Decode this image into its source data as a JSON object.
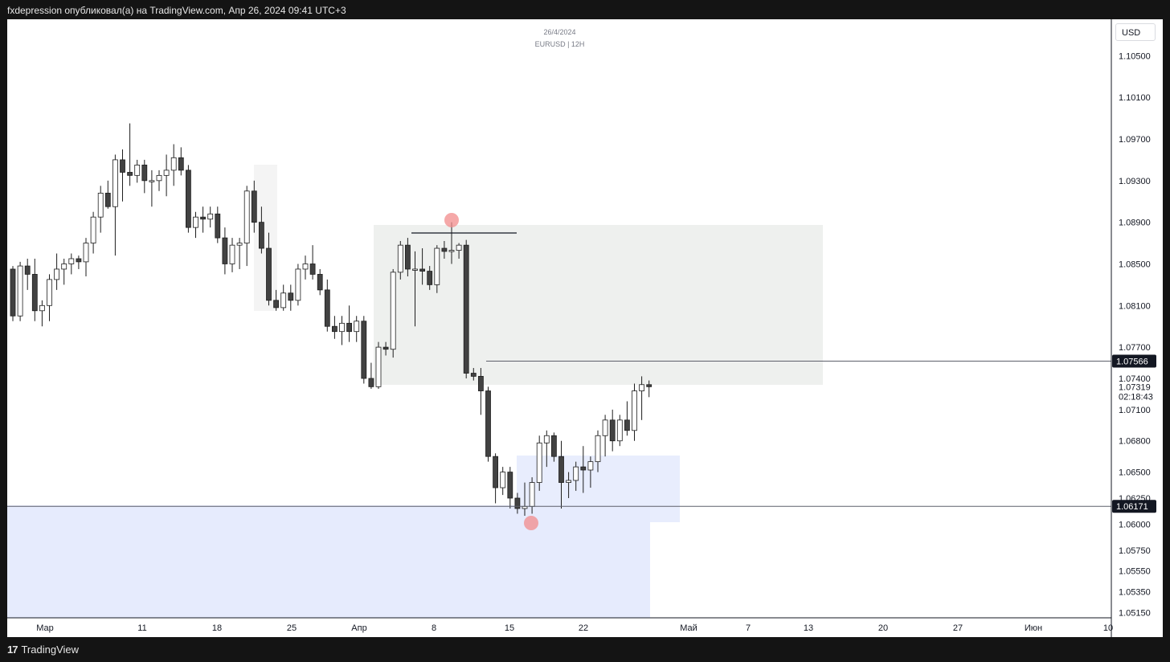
{
  "header": {
    "publication": "fxdepression опубликовал(а) на TradingView.com, Апр 26, 2024 09:41 UTC+3"
  },
  "chart_info": {
    "date": "26/4/2024",
    "symbol": "EURUSD | 12H",
    "currency": "USD"
  },
  "footer": {
    "brand": "TradingView",
    "logo_icon": "tradingview-logo-icon"
  },
  "colors": {
    "candle_up": "#ffffff",
    "candle_down": "#424242",
    "candle_border": "#1e1e1e",
    "supply_zone": "#eef0ee",
    "demand_zone": "#e6ebfd",
    "marker_red": "#f28b8b",
    "price_label_bg": "#131722"
  },
  "chart_data": {
    "type": "candlestick",
    "price_axis_ticks": [
      "1.10500",
      "1.10100",
      "1.09700",
      "1.09300",
      "1.08900",
      "1.08500",
      "1.08100",
      "1.07700",
      "1.07400",
      "1.07100",
      "1.06800",
      "1.06500",
      "1.06250",
      "1.06000",
      "1.05750",
      "1.05550",
      "1.05350",
      "1.05150"
    ],
    "time_axis_ticks": [
      "Мар",
      "11",
      "18",
      "25",
      "Апр",
      "8",
      "15",
      "22",
      "Май",
      "7",
      "13",
      "20",
      "27",
      "Июн",
      "10"
    ],
    "ylim": [
      1.051,
      1.1085
    ],
    "levels": [
      {
        "price": "1.07566",
        "style": "line"
      },
      {
        "price": "1.06171",
        "style": "line"
      }
    ],
    "current_price": {
      "price": "1.07319",
      "countdown": "02:18:43"
    },
    "candles": [
      [
        1.0845,
        1.0848,
        1.0795,
        1.08
      ],
      [
        1.08,
        1.0852,
        1.0795,
        1.0848
      ],
      [
        1.0848,
        1.0855,
        1.0825,
        1.084
      ],
      [
        1.084,
        1.0855,
        1.0795,
        1.0805
      ],
      [
        1.0805,
        1.0815,
        1.079,
        1.081
      ],
      [
        1.081,
        1.084,
        1.0795,
        1.0835
      ],
      [
        1.0835,
        1.086,
        1.0825,
        1.0845
      ],
      [
        1.0845,
        1.0855,
        1.083,
        1.085
      ],
      [
        1.085,
        1.086,
        1.084,
        1.0855
      ],
      [
        1.0855,
        1.0858,
        1.0845,
        1.0852
      ],
      [
        1.0852,
        1.0875,
        1.0838,
        1.087
      ],
      [
        1.087,
        1.09,
        1.086,
        1.0895
      ],
      [
        1.0895,
        1.0925,
        1.088,
        1.0918
      ],
      [
        1.0918,
        1.093,
        1.0903,
        1.0905
      ],
      [
        1.0905,
        1.0955,
        1.0858,
        1.095
      ],
      [
        1.095,
        1.096,
        1.091,
        1.0938
      ],
      [
        1.0938,
        1.0985,
        1.0925,
        1.0935
      ],
      [
        1.0935,
        1.095,
        1.0928,
        1.0945
      ],
      [
        1.0945,
        1.095,
        1.0918,
        1.093
      ],
      [
        1.093,
        1.094,
        1.0905,
        1.093
      ],
      [
        1.093,
        1.094,
        1.092,
        1.0935
      ],
      [
        1.0935,
        1.0955,
        1.0915,
        1.094
      ],
      [
        1.094,
        1.0965,
        1.0925,
        1.0952
      ],
      [
        1.0952,
        1.0962,
        1.0935,
        1.094
      ],
      [
        1.094,
        1.0945,
        1.088,
        1.0885
      ],
      [
        1.0885,
        1.09,
        1.0875,
        1.0895
      ],
      [
        1.0895,
        1.0905,
        1.088,
        1.0893
      ],
      [
        1.0893,
        1.0905,
        1.0885,
        1.0898
      ],
      [
        1.0898,
        1.0905,
        1.087,
        1.0875
      ],
      [
        1.0875,
        1.0885,
        1.084,
        1.085
      ],
      [
        1.085,
        1.0875,
        1.0842,
        1.0868
      ],
      [
        1.0868,
        1.0875,
        1.0845,
        1.087
      ],
      [
        1.087,
        1.0925,
        1.0848,
        1.092
      ],
      [
        1.092,
        1.093,
        1.088,
        1.089
      ],
      [
        1.089,
        1.0905,
        1.086,
        1.0865
      ],
      [
        1.0865,
        1.088,
        1.081,
        1.0815
      ],
      [
        1.0815,
        1.0825,
        1.0805,
        1.0808
      ],
      [
        1.0808,
        1.083,
        1.0805,
        1.0822
      ],
      [
        1.0822,
        1.083,
        1.0805,
        1.0815
      ],
      [
        1.0815,
        1.085,
        1.081,
        1.0845
      ],
      [
        1.0845,
        1.0858,
        1.0835,
        1.085
      ],
      [
        1.085,
        1.0868,
        1.0835,
        1.084
      ],
      [
        1.084,
        1.0845,
        1.082,
        1.0825
      ],
      [
        1.0825,
        1.0835,
        1.0785,
        1.079
      ],
      [
        1.079,
        1.08,
        1.0778,
        1.0785
      ],
      [
        1.0785,
        1.08,
        1.0772,
        1.0793
      ],
      [
        1.0793,
        1.081,
        1.0775,
        1.0785
      ],
      [
        1.0785,
        1.08,
        1.0775,
        1.0795
      ],
      [
        1.0795,
        1.08,
        1.0735,
        1.074
      ],
      [
        1.074,
        1.0755,
        1.073,
        1.0732
      ],
      [
        1.0732,
        1.0775,
        1.073,
        1.077
      ],
      [
        1.077,
        1.0775,
        1.0762,
        1.0768
      ],
      [
        1.0768,
        1.0845,
        1.076,
        1.0842
      ],
      [
        1.0842,
        1.0872,
        1.0835,
        1.0868
      ],
      [
        1.0868,
        1.0875,
        1.0838,
        1.0845
      ],
      [
        1.0845,
        1.0862,
        1.079,
        1.0845
      ],
      [
        1.0845,
        1.0865,
        1.083,
        1.0843
      ],
      [
        1.0843,
        1.0848,
        1.0825,
        1.083
      ],
      [
        1.083,
        1.0868,
        1.0822,
        1.0865
      ],
      [
        1.0865,
        1.0872,
        1.0855,
        1.0862
      ],
      [
        1.0862,
        1.089,
        1.085,
        1.0863
      ],
      [
        1.0863,
        1.087,
        1.0855,
        1.0868
      ],
      [
        1.0868,
        1.0873,
        1.074,
        1.0745
      ],
      [
        1.0745,
        1.075,
        1.0738,
        1.0742
      ],
      [
        1.0742,
        1.075,
        1.0705,
        1.0728
      ],
      [
        1.0728,
        1.0732,
        1.066,
        1.0665
      ],
      [
        1.0665,
        1.0668,
        1.062,
        1.0635
      ],
      [
        1.0635,
        1.0655,
        1.0628,
        1.065
      ],
      [
        1.065,
        1.0655,
        1.0615,
        1.0625
      ],
      [
        1.0625,
        1.063,
        1.061,
        1.0615
      ],
      [
        1.0615,
        1.064,
        1.0608,
        1.0617
      ],
      [
        1.0617,
        1.0645,
        1.061,
        1.064
      ],
      [
        1.064,
        1.0685,
        1.0632,
        1.0678
      ],
      [
        1.0678,
        1.069,
        1.0655,
        1.0685
      ],
      [
        1.0685,
        1.0688,
        1.066,
        1.0665
      ],
      [
        1.0665,
        1.068,
        1.0615,
        1.064
      ],
      [
        1.064,
        1.065,
        1.0625,
        1.0642
      ],
      [
        1.0642,
        1.066,
        1.0632,
        1.0655
      ],
      [
        1.0655,
        1.0675,
        1.063,
        1.0652
      ],
      [
        1.0652,
        1.0665,
        1.0635,
        1.066
      ],
      [
        1.066,
        1.069,
        1.065,
        1.0685
      ],
      [
        1.0685,
        1.0705,
        1.0665,
        1.07
      ],
      [
        1.07,
        1.071,
        1.067,
        1.068
      ],
      [
        1.068,
        1.0705,
        1.0675,
        1.07
      ],
      [
        1.07,
        1.0718,
        1.0685,
        1.069
      ],
      [
        1.069,
        1.0735,
        1.068,
        1.0728
      ],
      [
        1.0728,
        1.0742,
        1.07,
        1.0734
      ],
      [
        1.0734,
        1.0738,
        1.0722,
        1.0732
      ]
    ]
  }
}
